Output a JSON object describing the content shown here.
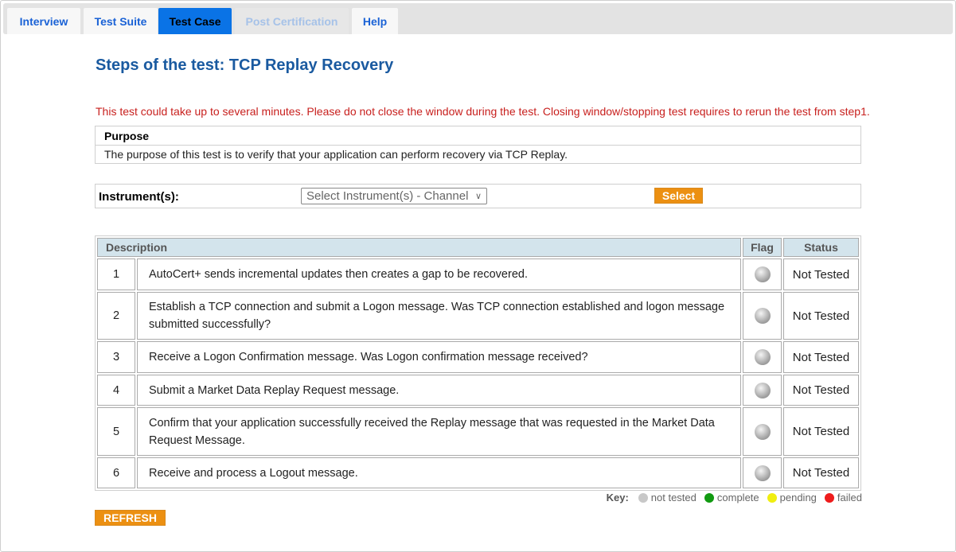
{
  "tabs": [
    {
      "label": "Interview",
      "state": "normal"
    },
    {
      "label": "Test Suite",
      "state": "normal"
    },
    {
      "label": "Test Case",
      "state": "active"
    },
    {
      "label": "Post Certification",
      "state": "disabled"
    },
    {
      "label": "Help",
      "state": "normal"
    }
  ],
  "title": "Steps of the test: TCP Replay Recovery",
  "warning": "This test could take up to several minutes. Please do not close the window during the test. Closing window/stopping test requires to rerun the test from step1.",
  "purpose": {
    "heading": "Purpose",
    "text": "The purpose of this test is to verify that your application can perform recovery via TCP Replay."
  },
  "instrument": {
    "label": "Instrument(s):",
    "select_value": "Select Instrument(s) - Channel",
    "select_button": "Select"
  },
  "table": {
    "headers": {
      "description": "Description",
      "flag": "Flag",
      "status": "Status"
    },
    "rows": [
      {
        "num": "1",
        "desc": "AutoCert+ sends incremental updates then creates a gap to be recovered.",
        "status": "Not Tested"
      },
      {
        "num": "2",
        "desc": "Establish a TCP connection and submit a Logon message. Was TCP connection established and logon message submitted successfully?",
        "status": "Not Tested"
      },
      {
        "num": "3",
        "desc": "Receive a Logon Confirmation message. Was Logon confirmation message received?",
        "status": "Not Tested"
      },
      {
        "num": "4",
        "desc": "Submit a Market Data Replay Request message.",
        "status": "Not Tested"
      },
      {
        "num": "5",
        "desc": "Confirm that your application successfully received the Replay message that was requested in the Market Data Request Message.",
        "status": "Not Tested"
      },
      {
        "num": "6",
        "desc": "Receive and process a Logout message.",
        "status": "Not Tested"
      }
    ]
  },
  "key": {
    "label": "Key:",
    "items": [
      {
        "label": "not tested",
        "color": "#c8c8c8"
      },
      {
        "label": "complete",
        "color": "#119a11"
      },
      {
        "label": "pending",
        "color": "#f0ee10"
      },
      {
        "label": "failed",
        "color": "#ee1c1c"
      }
    ]
  },
  "refresh_label": "REFRESH"
}
